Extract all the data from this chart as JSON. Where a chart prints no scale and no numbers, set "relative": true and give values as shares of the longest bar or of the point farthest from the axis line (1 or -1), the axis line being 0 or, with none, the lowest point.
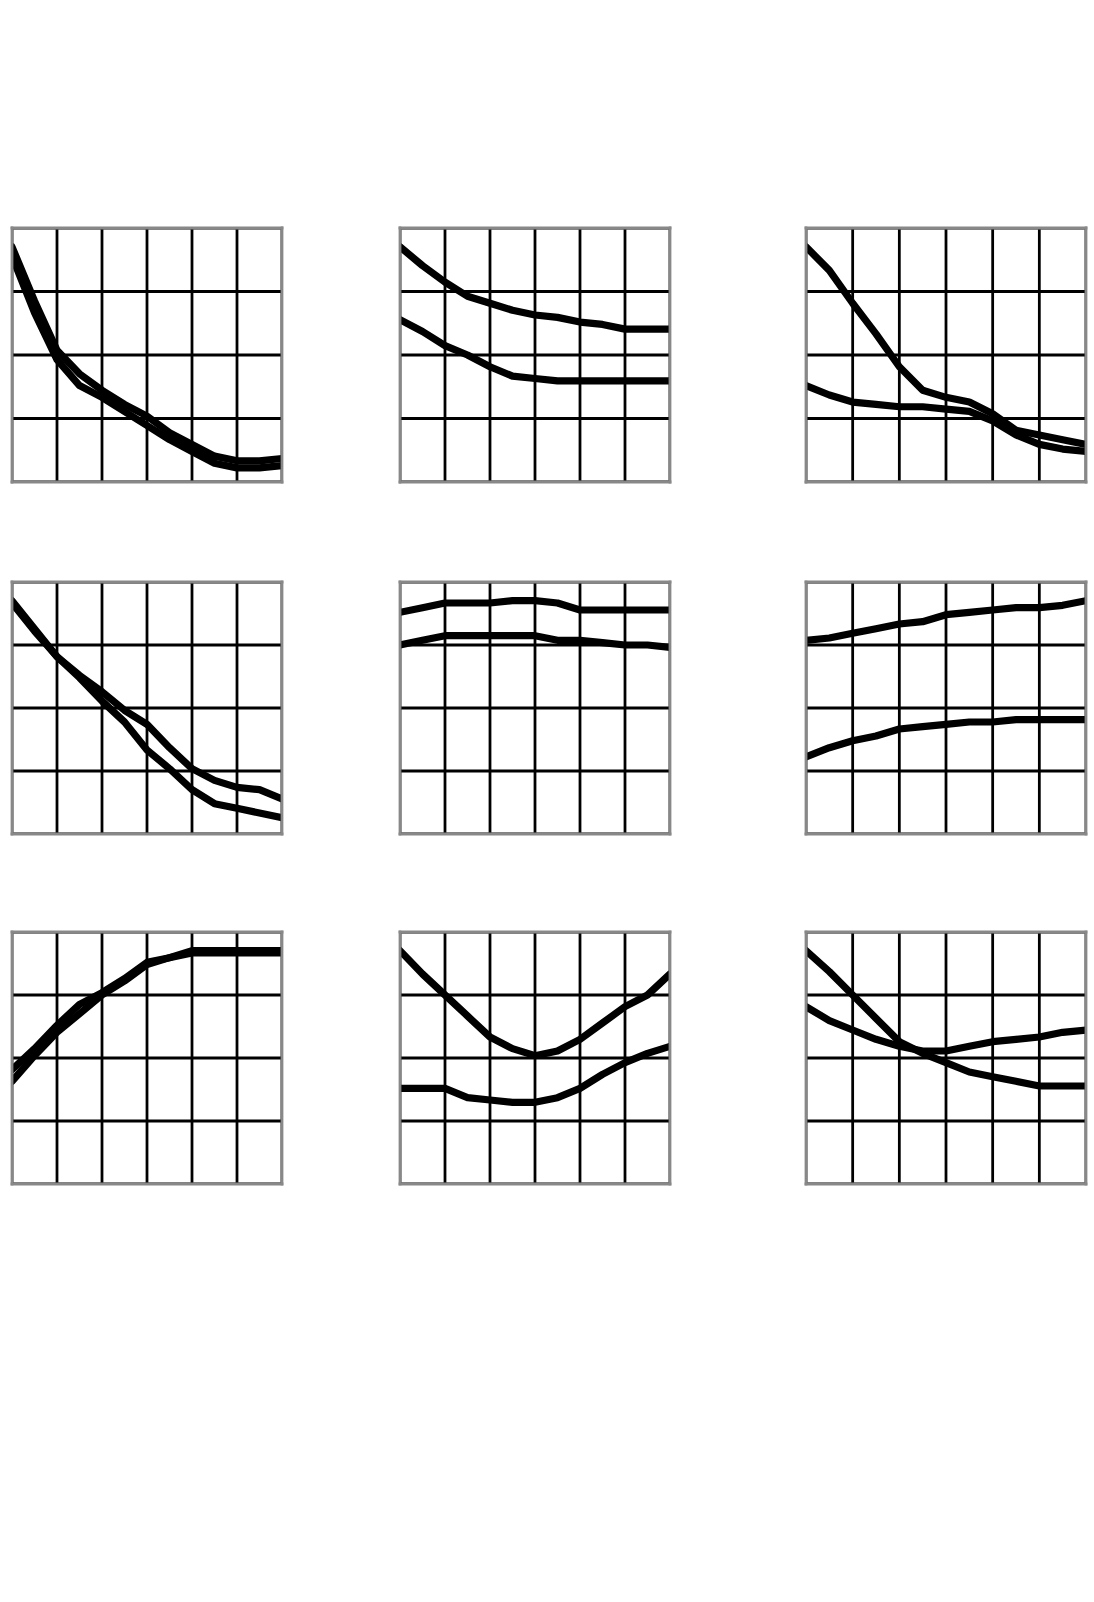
{
  "chart_data": [
    {
      "type": "line",
      "relative": true,
      "grid": true,
      "tick_labels": false,
      "categories": [
        null,
        null,
        null,
        null,
        null,
        null,
        null,
        null,
        null,
        null,
        null,
        null,
        null
      ],
      "series": [
        {
          "color": "#000000",
          "values": [
            1,
            0.77,
            0.56,
            0.46,
            0.39,
            0.33,
            0.28,
            0.21,
            0.16,
            0.11,
            0.09,
            0.09,
            0.1
          ]
        },
        {
          "color": "#000000",
          "values": [
            0.96,
            0.72,
            0.52,
            0.41,
            0.36,
            0.3,
            0.24,
            0.18,
            0.13,
            0.08,
            0.06,
            0.06,
            0.07
          ]
        }
      ]
    },
    {
      "type": "line",
      "relative": true,
      "grid": true,
      "tick_labels": false,
      "categories": [
        null,
        null,
        null,
        null,
        null,
        null,
        null,
        null,
        null,
        null,
        null,
        null,
        null
      ],
      "series": [
        {
          "color": "#000000",
          "values": [
            1,
            0.92,
            0.85,
            0.79,
            0.76,
            0.73,
            0.71,
            0.7,
            0.68,
            0.67,
            0.65,
            0.65,
            0.65
          ]
        },
        {
          "color": "#000000",
          "values": [
            0.69,
            0.64,
            0.58,
            0.54,
            0.49,
            0.45,
            0.44,
            0.43,
            0.43,
            0.43,
            0.43,
            0.43,
            0.43
          ]
        }
      ]
    },
    {
      "type": "line",
      "relative": true,
      "grid": true,
      "tick_labels": false,
      "categories": [
        null,
        null,
        null,
        null,
        null,
        null,
        null,
        null,
        null,
        null,
        null,
        null,
        null
      ],
      "series": [
        {
          "color": "#000000",
          "values": [
            1,
            0.9,
            0.76,
            0.63,
            0.49,
            0.39,
            0.36,
            0.34,
            0.29,
            0.22,
            0.2,
            0.18,
            0.16
          ]
        },
        {
          "color": "#000000",
          "values": [
            0.41,
            0.37,
            0.34,
            0.33,
            0.32,
            0.32,
            0.31,
            0.3,
            0.26,
            0.2,
            0.16,
            0.14,
            0.13
          ]
        }
      ]
    },
    {
      "type": "line",
      "relative": true,
      "grid": true,
      "tick_labels": false,
      "categories": [
        null,
        null,
        null,
        null,
        null,
        null,
        null,
        null,
        null,
        null,
        null,
        null,
        null
      ],
      "series": [
        {
          "color": "#000000",
          "values": [
            1,
            0.88,
            0.76,
            0.68,
            0.61,
            0.53,
            0.47,
            0.37,
            0.28,
            0.23,
            0.2,
            0.19,
            0.15
          ]
        },
        {
          "color": "#000000",
          "values": [
            0.99,
            0.87,
            0.76,
            0.67,
            0.57,
            0.48,
            0.36,
            0.28,
            0.19,
            0.13,
            0.11,
            0.09,
            0.07
          ]
        }
      ]
    },
    {
      "type": "line",
      "relative": true,
      "grid": true,
      "tick_labels": false,
      "categories": [
        null,
        null,
        null,
        null,
        null,
        null,
        null,
        null,
        null,
        null,
        null,
        null,
        null
      ],
      "series": [
        {
          "color": "#000000",
          "values": [
            0.95,
            0.97,
            0.99,
            0.99,
            0.99,
            1,
            1,
            0.99,
            0.96,
            0.96,
            0.96,
            0.96,
            0.96
          ]
        },
        {
          "color": "#000000",
          "values": [
            0.81,
            0.83,
            0.85,
            0.85,
            0.85,
            0.85,
            0.85,
            0.83,
            0.83,
            0.82,
            0.81,
            0.81,
            0.8
          ]
        }
      ]
    },
    {
      "type": "line",
      "relative": true,
      "grid": true,
      "tick_labels": false,
      "categories": [
        null,
        null,
        null,
        null,
        null,
        null,
        null,
        null,
        null,
        null,
        null,
        null,
        null
      ],
      "series": [
        {
          "color": "#000000",
          "values": [
            0.83,
            0.84,
            0.86,
            0.88,
            0.9,
            0.91,
            0.94,
            0.95,
            0.96,
            0.97,
            0.97,
            0.98,
            1
          ]
        },
        {
          "color": "#000000",
          "values": [
            0.33,
            0.37,
            0.4,
            0.42,
            0.45,
            0.46,
            0.47,
            0.48,
            0.48,
            0.49,
            0.49,
            0.49,
            0.49
          ]
        }
      ]
    },
    {
      "type": "line",
      "relative": true,
      "grid": true,
      "tick_labels": false,
      "categories": [
        null,
        null,
        null,
        null,
        null,
        null,
        null,
        null,
        null,
        null,
        null,
        null,
        null
      ],
      "series": [
        {
          "color": "#000000",
          "values": [
            0.49,
            0.58,
            0.68,
            0.77,
            0.82,
            0.88,
            0.95,
            0.97,
            1,
            1,
            1,
            1,
            1
          ]
        },
        {
          "color": "#000000",
          "values": [
            0.44,
            0.55,
            0.65,
            0.73,
            0.81,
            0.87,
            0.94,
            0.97,
            0.99,
            0.99,
            0.99,
            0.99,
            0.99
          ]
        }
      ]
    },
    {
      "type": "line",
      "relative": true,
      "grid": true,
      "tick_labels": false,
      "categories": [
        null,
        null,
        null,
        null,
        null,
        null,
        null,
        null,
        null,
        null,
        null,
        null,
        null
      ],
      "series": [
        {
          "color": "#000000",
          "values": [
            1,
            0.9,
            0.81,
            0.72,
            0.63,
            0.58,
            0.55,
            0.57,
            0.62,
            0.69,
            0.76,
            0.81,
            0.9
          ]
        },
        {
          "color": "#000000",
          "values": [
            0.41,
            0.41,
            0.41,
            0.37,
            0.36,
            0.35,
            0.35,
            0.37,
            0.41,
            0.47,
            0.52,
            0.56,
            0.59
          ]
        }
      ]
    },
    {
      "type": "line",
      "relative": true,
      "grid": true,
      "tick_labels": false,
      "categories": [
        null,
        null,
        null,
        null,
        null,
        null,
        null,
        null,
        null,
        null,
        null,
        null,
        null
      ],
      "series": [
        {
          "color": "#000000",
          "values": [
            1,
            0.91,
            0.81,
            0.71,
            0.61,
            0.56,
            0.52,
            0.48,
            0.46,
            0.44,
            0.42,
            0.42,
            0.42
          ]
        },
        {
          "color": "#000000",
          "values": [
            0.76,
            0.7,
            0.66,
            0.62,
            0.59,
            0.57,
            0.57,
            0.59,
            0.61,
            0.62,
            0.63,
            0.65,
            0.66
          ]
        }
      ]
    }
  ]
}
